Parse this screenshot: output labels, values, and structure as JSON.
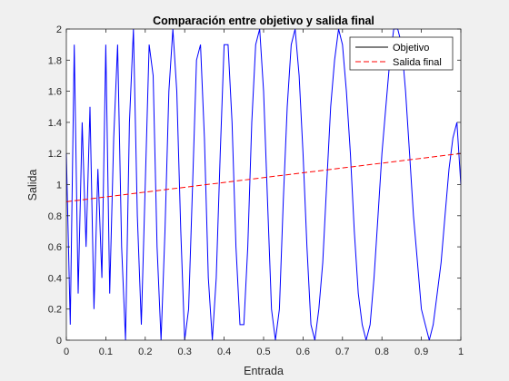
{
  "chart_data": {
    "type": "line",
    "title": "Comparación entre objetivo y salida final",
    "xlabel": "Entrada",
    "ylabel": "Salida",
    "xlim": [
      0,
      1
    ],
    "ylim": [
      0,
      2
    ],
    "xticks": [
      "0",
      "0.1",
      "0.2",
      "0.3",
      "0.4",
      "0.5",
      "0.6",
      "0.7",
      "0.8",
      "0.9",
      "1"
    ],
    "yticks": [
      "0",
      "0.2",
      "0.4",
      "0.6",
      "0.8",
      "1",
      "1.2",
      "1.4",
      "1.6",
      "1.8",
      "2"
    ],
    "grid": false,
    "legend_position": "top-right",
    "series": [
      {
        "name": "Objetivo",
        "color": "#0000ff",
        "line_style": "solid",
        "x": [
          0.0,
          0.01,
          0.02,
          0.03,
          0.04,
          0.05,
          0.06,
          0.07,
          0.08,
          0.09,
          0.1,
          0.11,
          0.12,
          0.13,
          0.14,
          0.15,
          0.16,
          0.17,
          0.18,
          0.19,
          0.2,
          0.21,
          0.22,
          0.23,
          0.24,
          0.25,
          0.26,
          0.27,
          0.28,
          0.29,
          0.3,
          0.31,
          0.32,
          0.33,
          0.34,
          0.35,
          0.36,
          0.37,
          0.38,
          0.39,
          0.4,
          0.41,
          0.42,
          0.43,
          0.44,
          0.45,
          0.46,
          0.47,
          0.48,
          0.49,
          0.5,
          0.51,
          0.52,
          0.53,
          0.54,
          0.55,
          0.56,
          0.57,
          0.58,
          0.59,
          0.6,
          0.61,
          0.62,
          0.63,
          0.64,
          0.65,
          0.66,
          0.67,
          0.68,
          0.69,
          0.7,
          0.71,
          0.72,
          0.73,
          0.74,
          0.75,
          0.76,
          0.77,
          0.78,
          0.79,
          0.8,
          0.81,
          0.82,
          0.83,
          0.84,
          0.85,
          0.86,
          0.87,
          0.88,
          0.89,
          0.9,
          0.91,
          0.92,
          0.93,
          0.94,
          0.95,
          0.96,
          0.97,
          0.98,
          0.99,
          1.0
        ],
        "y": [
          1.2,
          0.1,
          1.9,
          0.3,
          1.4,
          0.6,
          1.5,
          0.2,
          1.1,
          0.4,
          1.9,
          0.3,
          1.3,
          1.9,
          0.6,
          0.0,
          1.4,
          2.0,
          0.8,
          0.1,
          1.0,
          1.9,
          1.7,
          0.6,
          0.0,
          0.7,
          1.6,
          2.0,
          1.6,
          0.7,
          0.0,
          0.2,
          1.0,
          1.8,
          1.9,
          1.3,
          0.4,
          0.0,
          0.4,
          1.2,
          1.9,
          1.9,
          1.4,
          0.6,
          0.1,
          0.1,
          0.6,
          1.4,
          1.9,
          2.0,
          1.6,
          0.9,
          0.2,
          0.0,
          0.2,
          0.9,
          1.5,
          1.9,
          2.0,
          1.7,
          1.2,
          0.6,
          0.1,
          0.0,
          0.2,
          0.5,
          1.0,
          1.5,
          1.8,
          2.0,
          1.9,
          1.6,
          1.2,
          0.7,
          0.3,
          0.1,
          0.0,
          0.1,
          0.4,
          0.8,
          1.2,
          1.5,
          1.8,
          2.0,
          2.0,
          1.9,
          1.6,
          1.2,
          0.8,
          0.5,
          0.2,
          0.1,
          0.0,
          0.1,
          0.3,
          0.5,
          0.8,
          1.1,
          1.3,
          1.4,
          1.0
        ]
      },
      {
        "name": "Salida final",
        "color": "#ff0000",
        "line_style": "dashed",
        "x": [
          0,
          1
        ],
        "y": [
          0.89,
          1.2
        ]
      }
    ]
  }
}
